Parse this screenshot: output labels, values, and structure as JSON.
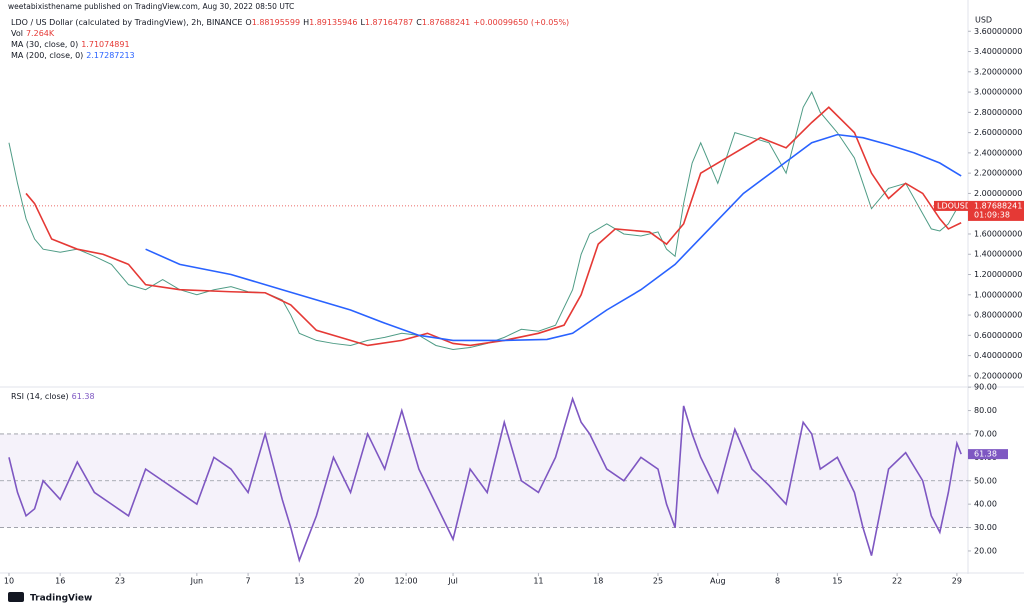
{
  "header": {
    "publisher": "weetabixisthename published on TradingView.com, Aug 30, 2022 08:50 UTC",
    "symbol_title": "LDO / US Dollar (calculated by TradingView), 2h, BINANCE",
    "ohlc_labels": [
      "O",
      "H",
      "L",
      "C"
    ],
    "ohlc": [
      1.88195599,
      1.89135946,
      1.87164787,
      1.87688241
    ],
    "change": "+0.00099650 (+0.05%)",
    "volume_label": "Vol",
    "volume": "7.264K",
    "currency": "USD",
    "symbol_tag": "LDOUSD",
    "countdown": "01:09:38",
    "brand": "TradingView"
  },
  "chart_data": [
    {
      "type": "line",
      "xlim": [
        -1.05,
        112.3
      ],
      "ylim": [
        0.11,
        3.79
      ],
      "yticks": [
        {
          "value": 0.2,
          "label": "0.20000000"
        },
        {
          "value": 0.4,
          "label": "0.40000000"
        },
        {
          "value": 0.6,
          "label": "0.60000000"
        },
        {
          "value": 0.8,
          "label": "0.80000000"
        },
        {
          "value": 1.0,
          "label": "1.00000000"
        },
        {
          "value": 1.2,
          "label": "1.20000000"
        },
        {
          "value": 1.4,
          "label": "1.40000000"
        },
        {
          "value": 1.6,
          "label": "1.60000000"
        },
        {
          "value": 1.8,
          "label": "1.80000000"
        },
        {
          "value": 2.0,
          "label": "2.00000000"
        },
        {
          "value": 2.2,
          "label": "2.20000000"
        },
        {
          "value": 2.4,
          "label": "2.40000000"
        },
        {
          "value": 2.6,
          "label": "2.60000000"
        },
        {
          "value": 2.8,
          "label": "2.80000000"
        },
        {
          "value": 3.0,
          "label": "3.00000000"
        },
        {
          "value": 3.2,
          "label": "3.20000000"
        },
        {
          "value": 3.4,
          "label": "3.40000000"
        },
        {
          "value": 3.6,
          "label": "3.60000000"
        }
      ],
      "grid": false,
      "series": [
        {
          "color": "#4f9c86",
          "x": [
            0,
            1,
            2,
            3,
            4,
            6,
            8,
            10,
            12,
            14,
            16,
            18,
            20,
            22,
            24,
            26,
            28,
            30,
            32,
            33,
            34,
            36,
            38,
            40,
            42,
            44,
            46,
            48,
            50,
            52,
            54,
            56,
            58,
            60,
            62,
            64,
            66,
            67,
            68,
            70,
            72,
            74,
            76,
            77,
            78,
            79,
            80,
            81,
            83,
            85,
            87,
            89,
            91,
            93,
            94,
            95,
            97,
            99,
            100,
            101,
            103,
            105,
            107,
            108,
            109,
            110,
            111,
            111.5
          ],
          "values": [
            2.5,
            2.1,
            1.75,
            1.55,
            1.45,
            1.42,
            1.45,
            1.38,
            1.3,
            1.1,
            1.05,
            1.15,
            1.05,
            1.0,
            1.05,
            1.08,
            1.03,
            1.02,
            0.95,
            0.8,
            0.62,
            0.55,
            0.52,
            0.5,
            0.55,
            0.58,
            0.62,
            0.6,
            0.5,
            0.46,
            0.48,
            0.52,
            0.58,
            0.66,
            0.64,
            0.7,
            1.05,
            1.4,
            1.6,
            1.7,
            1.6,
            1.58,
            1.62,
            1.45,
            1.38,
            1.9,
            2.3,
            2.5,
            2.1,
            2.6,
            2.55,
            2.5,
            2.2,
            2.85,
            3.0,
            2.8,
            2.6,
            2.35,
            2.1,
            1.85,
            2.05,
            2.1,
            1.8,
            1.65,
            1.63,
            1.7,
            1.85,
            1.87688241
          ]
        },
        {
          "name": "MA (30, close, 0)",
          "legend_value": 1.71074891,
          "color": "#e53935",
          "x": [
            2,
            3,
            5,
            8,
            11,
            14,
            16,
            20,
            26,
            30,
            33,
            36,
            40,
            42,
            46,
            49,
            52,
            54,
            58,
            62,
            65,
            67,
            69,
            71,
            75,
            77,
            79,
            81,
            84,
            88,
            91,
            94,
            96,
            99,
            101,
            103,
            105,
            107,
            109,
            110,
            111.5
          ],
          "values": [
            2.0,
            1.9,
            1.55,
            1.45,
            1.4,
            1.3,
            1.1,
            1.05,
            1.03,
            1.02,
            0.9,
            0.65,
            0.55,
            0.5,
            0.55,
            0.62,
            0.52,
            0.5,
            0.55,
            0.62,
            0.7,
            1.0,
            1.5,
            1.65,
            1.62,
            1.5,
            1.7,
            2.2,
            2.35,
            2.55,
            2.45,
            2.7,
            2.85,
            2.6,
            2.2,
            1.95,
            2.1,
            2.0,
            1.75,
            1.65,
            1.71074891
          ]
        },
        {
          "name": "MA (200, close, 0)",
          "legend_value": 2.17287213,
          "color": "#2962ff",
          "x": [
            16,
            20,
            26,
            32,
            36,
            40,
            44,
            48,
            52,
            58,
            63,
            66,
            70,
            74,
            78,
            82,
            86,
            90,
            94,
            97,
            100,
            103,
            106,
            109,
            111.5
          ],
          "values": [
            1.45,
            1.3,
            1.2,
            1.05,
            0.95,
            0.85,
            0.72,
            0.6,
            0.55,
            0.55,
            0.56,
            0.62,
            0.85,
            1.05,
            1.3,
            1.65,
            2.0,
            2.25,
            2.5,
            2.58,
            2.55,
            2.48,
            2.4,
            2.3,
            2.17287213
          ]
        }
      ]
    },
    {
      "type": "line",
      "xlim": [
        -1.05,
        112.3
      ],
      "ylim": [
        11,
        90.5
      ],
      "yticks": [
        {
          "value": 20,
          "label": "20.00"
        },
        {
          "value": 30,
          "label": "30.00"
        },
        {
          "value": 40,
          "label": "40.00"
        },
        {
          "value": 50,
          "label": "50.00"
        },
        {
          "value": 60,
          "label": "60.00"
        },
        {
          "value": 70,
          "label": "70.00"
        },
        {
          "value": 80,
          "label": "80.00"
        },
        {
          "value": 90,
          "label": "90.00"
        }
      ],
      "xticks": [
        {
          "value": 0,
          "label": "10"
        },
        {
          "value": 6,
          "label": "16"
        },
        {
          "value": 13,
          "label": "23"
        },
        {
          "value": 22,
          "label": "Jun"
        },
        {
          "value": 28,
          "label": "7"
        },
        {
          "value": 34,
          "label": "13"
        },
        {
          "value": 41,
          "label": "20"
        },
        {
          "value": 46.5,
          "label": "12:00"
        },
        {
          "value": 52,
          "label": "Jul"
        },
        {
          "value": 62,
          "label": "11"
        },
        {
          "value": 69,
          "label": "18"
        },
        {
          "value": 76,
          "label": "25"
        },
        {
          "value": 83,
          "label": "Aug"
        },
        {
          "value": 90,
          "label": "8"
        },
        {
          "value": 97,
          "label": "15"
        },
        {
          "value": 104,
          "label": "22"
        },
        {
          "value": 111,
          "label": "29"
        }
      ],
      "levels": [
        70,
        50,
        30
      ],
      "band_color": "#7e57c2",
      "grid": false,
      "series": [
        {
          "name": "RSI (14, close)",
          "color": "#7e57c2",
          "x": [
            0,
            1,
            2,
            3,
            4,
            6,
            8,
            10,
            12,
            14,
            16,
            18,
            20,
            22,
            24,
            26,
            28,
            30,
            32,
            33,
            34,
            36,
            38,
            40,
            42,
            44,
            46,
            48,
            50,
            52,
            54,
            56,
            58,
            60,
            62,
            64,
            66,
            67,
            68,
            70,
            72,
            74,
            76,
            77,
            78,
            79,
            80,
            81,
            83,
            85,
            87,
            89,
            91,
            93,
            94,
            95,
            97,
            99,
            100,
            101,
            103,
            105,
            107,
            108,
            109,
            110,
            111,
            111.5
          ],
          "values": [
            60,
            45,
            35,
            38,
            50,
            42,
            58,
            45,
            40,
            35,
            55,
            50,
            45,
            40,
            60,
            55,
            45,
            70,
            42,
            30,
            16,
            35,
            60,
            45,
            70,
            55,
            80,
            55,
            40,
            25,
            55,
            45,
            75,
            50,
            45,
            60,
            85,
            75,
            70,
            55,
            50,
            60,
            55,
            40,
            30,
            82,
            70,
            60,
            45,
            72,
            55,
            48,
            40,
            75,
            70,
            55,
            60,
            45,
            30,
            18,
            55,
            62,
            50,
            35,
            28,
            45,
            66,
            61.38
          ]
        }
      ]
    }
  ]
}
